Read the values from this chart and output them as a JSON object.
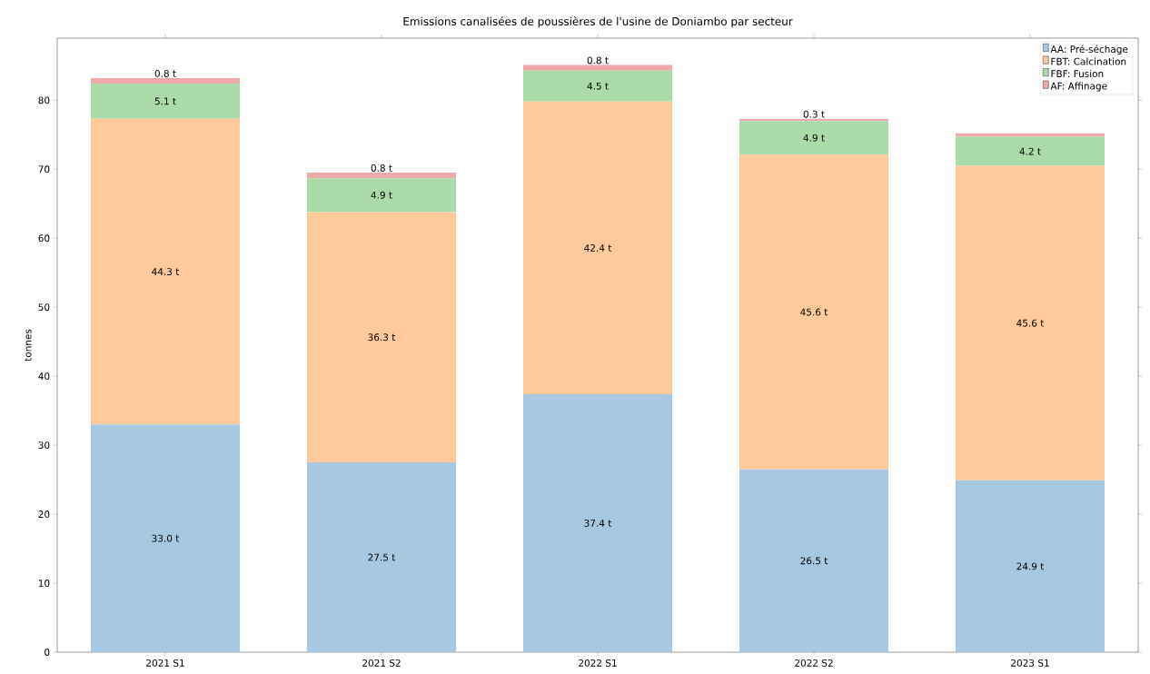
{
  "chart_data": {
    "type": "bar",
    "stacked": true,
    "title": "Emissions canalisées de poussières de l'usine de Doniambo par secteur",
    "ylabel": "tonnes",
    "categories": [
      "2021 S1",
      "2021 S2",
      "2022 S1",
      "2022 S2",
      "2023 S1"
    ],
    "series": [
      {
        "name": "AA: Pré-séchage",
        "color": "#a6c8e0",
        "values": [
          33.0,
          27.5,
          37.4,
          26.5,
          24.9
        ],
        "value_labels": [
          "33.0 t",
          "27.5 t",
          "37.4 t",
          "26.5 t",
          "24.9 t"
        ]
      },
      {
        "name": "FBT: Calcination",
        "color": "#ffc99c",
        "values": [
          44.3,
          36.3,
          42.4,
          45.6,
          45.6
        ],
        "value_labels": [
          "44.3 t",
          "36.3 t",
          "42.4 t",
          "45.6 t",
          "45.6 t"
        ]
      },
      {
        "name": "FBF: Fusion",
        "color": "#aadba9",
        "values": [
          5.1,
          4.9,
          4.5,
          4.9,
          4.2
        ],
        "value_labels": [
          "5.1 t",
          "4.9 t",
          "4.5 t",
          "4.9 t",
          "4.2 t"
        ]
      },
      {
        "name": "AF: Affinage",
        "color": "#eeaaaa",
        "values": [
          0.8,
          0.8,
          0.8,
          0.3,
          0.5
        ],
        "value_labels": [
          "0.8 t",
          "0.8 t",
          "0.8 t",
          "0.3 t",
          null
        ]
      }
    ],
    "ylim": [
      0,
      89
    ],
    "yticks": [
      0,
      10,
      20,
      30,
      40,
      50,
      60,
      70,
      80
    ],
    "legend": "top right",
    "grid": false
  }
}
